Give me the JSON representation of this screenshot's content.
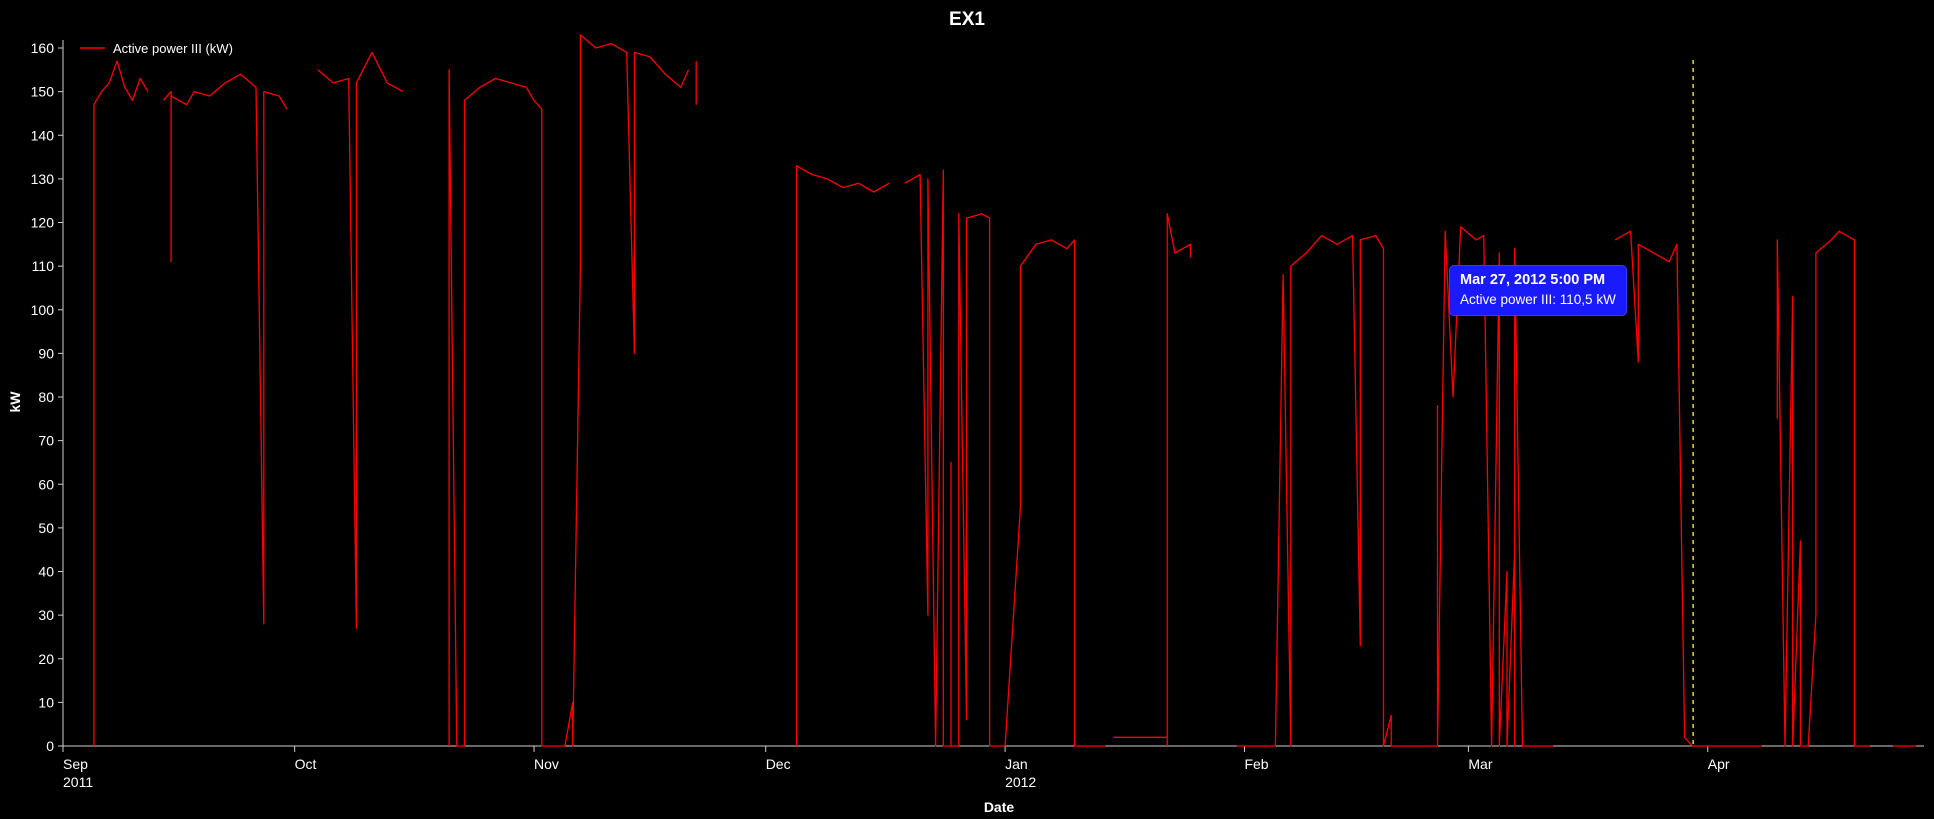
{
  "chart_data": {
    "type": "line",
    "title": "EX1",
    "xlabel": "Date",
    "ylabel": "kW",
    "ylim": [
      0,
      160
    ],
    "y_ticks": [
      0,
      10,
      20,
      30,
      40,
      50,
      60,
      70,
      80,
      90,
      100,
      110,
      120,
      130,
      140,
      150,
      160
    ],
    "x_ticks": [
      {
        "date": "2011-09-01",
        "label": "Sep",
        "sublabel": "2011"
      },
      {
        "date": "2011-10-01",
        "label": "Oct",
        "sublabel": ""
      },
      {
        "date": "2011-11-01",
        "label": "Nov",
        "sublabel": ""
      },
      {
        "date": "2011-12-01",
        "label": "Dec",
        "sublabel": ""
      },
      {
        "date": "2012-01-01",
        "label": "Jan",
        "sublabel": "2012"
      },
      {
        "date": "2012-02-01",
        "label": "Feb",
        "sublabel": ""
      },
      {
        "date": "2012-03-01",
        "label": "Mar",
        "sublabel": ""
      },
      {
        "date": "2012-04-01",
        "label": "Apr",
        "sublabel": ""
      }
    ],
    "xlim": [
      "2011-09-01",
      "2012-04-29"
    ],
    "grid": false,
    "legend": "top-left",
    "series": [
      {
        "name": "Active power III (kW)",
        "color": "#ff0000",
        "points": [
          [
            "2011-09-05",
            0
          ],
          [
            "2011-09-05",
            104
          ],
          [
            "2011-09-05",
            147
          ],
          [
            "2011-09-06",
            150
          ],
          [
            "2011-09-07",
            152
          ],
          [
            "2011-09-08",
            157
          ],
          [
            "2011-09-09",
            151
          ],
          [
            "2011-09-10",
            148
          ],
          [
            "2011-09-11",
            153
          ],
          [
            "2011-09-12",
            150
          ],
          [
            null,
            null
          ],
          [
            "2011-09-14",
            148
          ],
          [
            "2011-09-15",
            150
          ],
          [
            "2011-09-15",
            111
          ],
          [
            "2011-09-15",
            149
          ],
          [
            "2011-09-17",
            147
          ],
          [
            "2011-09-18",
            150
          ],
          [
            "2011-09-20",
            149
          ],
          [
            "2011-09-22",
            152
          ],
          [
            "2011-09-24",
            154
          ],
          [
            "2011-09-26",
            151
          ],
          [
            "2011-09-27",
            28
          ],
          [
            "2011-09-27",
            150
          ],
          [
            "2011-09-29",
            149
          ],
          [
            "2011-09-30",
            146
          ],
          [
            null,
            null
          ],
          [
            "2011-10-04",
            155
          ],
          [
            "2011-10-06",
            152
          ],
          [
            "2011-10-08",
            153
          ],
          [
            "2011-10-09",
            27
          ],
          [
            "2011-10-09",
            152
          ],
          [
            "2011-10-11",
            159
          ],
          [
            "2011-10-13",
            152
          ],
          [
            "2011-10-15",
            150
          ],
          [
            null,
            null
          ],
          [
            "2011-10-21",
            0
          ],
          [
            "2011-10-21",
            155
          ],
          [
            "2011-10-22",
            0
          ],
          [
            "2011-10-22",
            0
          ],
          [
            "2011-10-23",
            0
          ],
          [
            "2011-10-23",
            148
          ],
          [
            "2011-10-25",
            151
          ],
          [
            "2011-10-27",
            153
          ],
          [
            "2011-10-29",
            152
          ],
          [
            "2011-10-31",
            151
          ],
          [
            "2011-11-01",
            148
          ],
          [
            "2011-11-02",
            146
          ],
          [
            "2011-11-02",
            0
          ],
          [
            "2011-11-05",
            0
          ],
          [
            "2011-11-06",
            10
          ],
          [
            "2011-11-06",
            0
          ],
          [
            "2011-11-07",
            110
          ],
          [
            "2011-11-07",
            163
          ],
          [
            "2011-11-09",
            160
          ],
          [
            "2011-11-11",
            161
          ],
          [
            "2011-11-13",
            159
          ],
          [
            "2011-11-14",
            90
          ],
          [
            "2011-11-14",
            159
          ],
          [
            "2011-11-16",
            158
          ],
          [
            "2011-11-18",
            154
          ],
          [
            "2011-11-20",
            151
          ],
          [
            "2011-11-21",
            155
          ],
          [
            null,
            null
          ],
          [
            "2011-11-22",
            157
          ],
          [
            "2011-11-22",
            147
          ],
          [
            null,
            null
          ],
          [
            "2011-12-05",
            0
          ],
          [
            "2011-12-05",
            78
          ],
          [
            "2011-12-05",
            133
          ],
          [
            "2011-12-07",
            131
          ],
          [
            "2011-12-09",
            130
          ],
          [
            "2011-12-11",
            128
          ],
          [
            "2011-12-13",
            129
          ],
          [
            "2011-12-15",
            127
          ],
          [
            "2011-12-17",
            129
          ],
          [
            null,
            null
          ],
          [
            "2011-12-19",
            129
          ],
          [
            "2011-12-21",
            131
          ],
          [
            "2011-12-22",
            30
          ],
          [
            "2011-12-22",
            130
          ],
          [
            "2011-12-23",
            0
          ],
          [
            "2011-12-24",
            132
          ],
          [
            "2011-12-24",
            0
          ],
          [
            "2011-12-25",
            0
          ],
          [
            "2011-12-25",
            65
          ],
          [
            "2011-12-25",
            0
          ],
          [
            "2011-12-26",
            0
          ],
          [
            "2011-12-26",
            122
          ],
          [
            "2011-12-27",
            6
          ],
          [
            "2011-12-27",
            121
          ],
          [
            "2011-12-29",
            122
          ],
          [
            "2011-12-30",
            121
          ],
          [
            "2011-12-30",
            0
          ],
          [
            "2012-01-01",
            0
          ],
          [
            "2012-01-03",
            55
          ],
          [
            "2012-01-03",
            110
          ],
          [
            "2012-01-05",
            115
          ],
          [
            "2012-01-07",
            116
          ],
          [
            "2012-01-09",
            114
          ],
          [
            "2012-01-10",
            116
          ],
          [
            "2012-01-10",
            0
          ],
          [
            "2012-01-14",
            0
          ],
          [
            null,
            null
          ],
          [
            "2012-01-15",
            2
          ],
          [
            "2012-01-22",
            2
          ],
          [
            null,
            null
          ],
          [
            "2012-01-22",
            0
          ],
          [
            "2012-01-22",
            122
          ],
          [
            "2012-01-23",
            113
          ],
          [
            "2012-01-25",
            115
          ],
          [
            "2012-01-25",
            112
          ],
          [
            null,
            null
          ],
          [
            "2012-01-31",
            0
          ],
          [
            "2012-02-05",
            0
          ],
          [
            "2012-02-06",
            108
          ],
          [
            "2012-02-07",
            0
          ],
          [
            "2012-02-07",
            110
          ],
          [
            "2012-02-09",
            113
          ],
          [
            "2012-02-11",
            117
          ],
          [
            "2012-02-13",
            115
          ],
          [
            "2012-02-15",
            117
          ],
          [
            "2012-02-16",
            23
          ],
          [
            "2012-02-16",
            116
          ],
          [
            "2012-02-18",
            117
          ],
          [
            "2012-02-19",
            114
          ],
          [
            "2012-02-19",
            0
          ],
          [
            "2012-02-20",
            7
          ],
          [
            "2012-02-20",
            0
          ],
          [
            "2012-02-26",
            0
          ],
          [
            "2012-02-26",
            78
          ],
          [
            "2012-02-26",
            0
          ],
          [
            "2012-02-27",
            118
          ],
          [
            "2012-02-28",
            80
          ],
          [
            "2012-02-29",
            119
          ],
          [
            "2012-03-02",
            116
          ],
          [
            "2012-03-03",
            117
          ],
          [
            "2012-03-04",
            0
          ],
          [
            "2012-03-05",
            113
          ],
          [
            "2012-03-05",
            0
          ],
          [
            "2012-03-06",
            40
          ],
          [
            "2012-03-06",
            0
          ],
          [
            "2012-03-07",
            45
          ],
          [
            "2012-03-07",
            0
          ],
          [
            "2012-03-07",
            114
          ],
          [
            "2012-03-08",
            0
          ],
          [
            "2012-03-12",
            0
          ],
          [
            null,
            null
          ],
          [
            "2012-03-20",
            116
          ],
          [
            "2012-03-22",
            118
          ],
          [
            "2012-03-23",
            88
          ],
          [
            "2012-03-23",
            115
          ],
          [
            "2012-03-25",
            113
          ],
          [
            "2012-03-27",
            111
          ],
          [
            "2012-03-28",
            115
          ],
          [
            "2012-03-29",
            2
          ],
          [
            "2012-03-30",
            0
          ],
          [
            "2012-04-08",
            0
          ],
          [
            null,
            null
          ],
          [
            "2012-04-10",
            75
          ],
          [
            "2012-04-10",
            116
          ],
          [
            "2012-04-11",
            0
          ],
          [
            "2012-04-12",
            103
          ],
          [
            "2012-04-12",
            0
          ],
          [
            "2012-04-13",
            47
          ],
          [
            "2012-04-13",
            0
          ],
          [
            "2012-04-14",
            0
          ],
          [
            "2012-04-15",
            30
          ],
          [
            "2012-04-15",
            113
          ],
          [
            "2012-04-17",
            116
          ],
          [
            "2012-04-18",
            118
          ],
          [
            "2012-04-20",
            116
          ],
          [
            "2012-04-20",
            0
          ],
          [
            "2012-04-22",
            0
          ],
          [
            null,
            null
          ],
          [
            "2012-04-25",
            0
          ],
          [
            "2012-04-28",
            0
          ]
        ]
      }
    ],
    "crosshair_date": "2012-03-27",
    "crosshair_color": "#e0e000",
    "tooltip": {
      "title": "Mar 27, 2012 5:00 PM",
      "text": "Active power III: 110,5  kW"
    }
  }
}
